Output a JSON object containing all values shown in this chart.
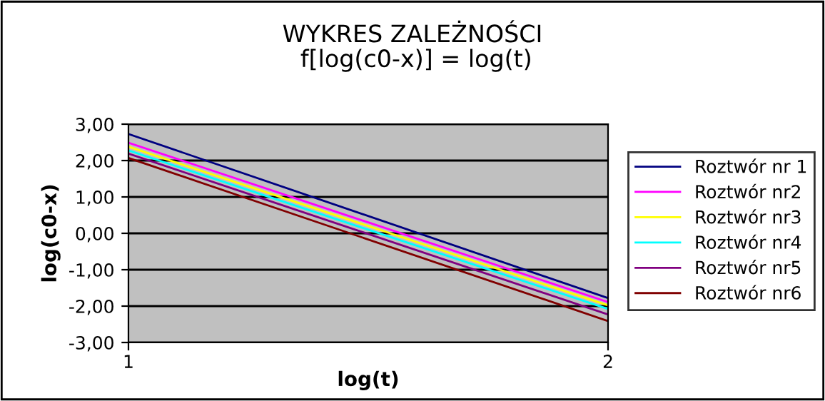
{
  "chart_data": {
    "type": "line",
    "title": "WYKRES ZALEŻNOŚCI\n f[log(c0-x)] = log(t)",
    "xlabel": "log(t)",
    "ylabel": "log(c0-x)",
    "x": [
      1,
      2
    ],
    "xlim": [
      1,
      2
    ],
    "xticks": [
      1,
      2
    ],
    "series": [
      {
        "name": "Roztwór nr 1",
        "color": "#000080",
        "values": [
          2.73,
          -1.78
        ]
      },
      {
        "name": "Roztwór nr2",
        "color": "#ff00ff",
        "values": [
          2.49,
          -1.89
        ]
      },
      {
        "name": "Roztwór nr3",
        "color": "#ffff00",
        "values": [
          2.38,
          -1.98
        ]
      },
      {
        "name": "Roztwór nr4",
        "color": "#00ffff",
        "values": [
          2.28,
          -2.08
        ]
      },
      {
        "name": "Roztwór nr5",
        "color": "#800080",
        "values": [
          2.19,
          -2.23
        ]
      },
      {
        "name": "Roztwór nr6",
        "color": "#800000",
        "values": [
          2.07,
          -2.41
        ]
      }
    ],
    "ylim": [
      -3,
      3
    ],
    "yticks": [
      {
        "value": -3,
        "label": "-3,00"
      },
      {
        "value": -2,
        "label": "-2,00"
      },
      {
        "value": -1,
        "label": "-1,00"
      },
      {
        "value": 0,
        "label": "0,00"
      },
      {
        "value": 1,
        "label": "1,00"
      },
      {
        "value": 2,
        "label": "2,00"
      },
      {
        "value": 3,
        "label": "3,00"
      }
    ],
    "grid": "y",
    "legend": "right",
    "marker": "none",
    "line_style": "solid"
  }
}
